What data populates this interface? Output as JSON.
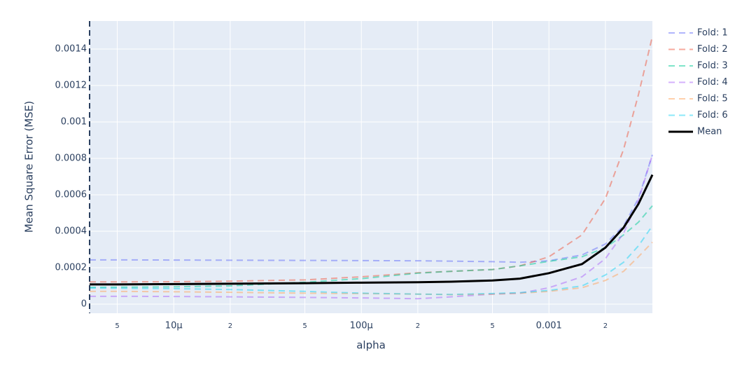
{
  "chart_data": {
    "type": "line",
    "x_label": "alpha",
    "y_label": "Mean Square Error (MSE)",
    "xscale": "log",
    "grid": true,
    "legend": "right",
    "xlim": [
      3.56e-06,
      0.00356
    ],
    "ylim": [
      -5e-05,
      0.001554
    ],
    "xticks": [
      {
        "value": 5e-06,
        "label": "5"
      },
      {
        "value": 1e-05,
        "label": "10μ"
      },
      {
        "value": 2e-05,
        "label": "2"
      },
      {
        "value": 5e-05,
        "label": "5"
      },
      {
        "value": 0.0001,
        "label": "100μ"
      },
      {
        "value": 0.0002,
        "label": "2"
      },
      {
        "value": 0.0005,
        "label": "5"
      },
      {
        "value": 0.001,
        "label": "0.001"
      },
      {
        "value": 0.002,
        "label": "2"
      }
    ],
    "yticks": [
      0,
      0.0002,
      0.0004,
      0.0006,
      0.0008,
      0.001,
      0.0012,
      0.0014
    ],
    "x": [
      3.56e-06,
      5e-06,
      1e-05,
      2e-05,
      5e-05,
      0.0001,
      0.0002,
      0.0003,
      0.0005,
      0.0007,
      0.001,
      0.0015,
      0.002,
      0.0025,
      0.003,
      0.00356
    ],
    "series": [
      {
        "name": "Fold: 1",
        "color": "#636efa",
        "dash": "dash",
        "values": [
          0.000243,
          0.000243,
          0.000242,
          0.000241,
          0.00024,
          0.000239,
          0.000238,
          0.000236,
          0.000233,
          0.00023,
          0.000238,
          0.00027,
          0.00033,
          0.00043,
          0.00058,
          0.00082
        ]
      },
      {
        "name": "Fold: 2",
        "color": "#ef553b",
        "dash": "dash",
        "values": [
          0.000122,
          0.000122,
          0.000123,
          0.000126,
          0.000133,
          0.00015,
          0.000172,
          0.00018,
          0.00019,
          0.00021,
          0.00026,
          0.00038,
          0.00058,
          0.00085,
          0.00115,
          0.00147
        ]
      },
      {
        "name": "Fold: 3",
        "color": "#00cc96",
        "dash": "dash",
        "values": [
          9.2e-05,
          9.3e-05,
          9.5e-05,
          0.0001,
          0.00012,
          0.00014,
          0.00017,
          0.00018,
          0.00019,
          0.00021,
          0.000235,
          0.00026,
          0.00031,
          0.00038,
          0.00045,
          0.00054
        ]
      },
      {
        "name": "Fold: 4",
        "color": "#ab63fa",
        "dash": "dash",
        "values": [
          4.3e-05,
          4.3e-05,
          4.2e-05,
          4e-05,
          3.7e-05,
          3.4e-05,
          3e-05,
          4e-05,
          5.5e-05,
          6e-05,
          9e-05,
          0.00015,
          0.00025,
          0.00039,
          0.00057,
          0.00082
        ]
      },
      {
        "name": "Fold: 5",
        "color": "#ffa15a",
        "dash": "dash",
        "values": [
          7e-05,
          7e-05,
          6.8e-05,
          6.5e-05,
          6e-05,
          5.8e-05,
          5.5e-05,
          5.2e-05,
          5.5e-05,
          6e-05,
          7e-05,
          9e-05,
          0.00013,
          0.00018,
          0.00026,
          0.00034
        ]
      },
      {
        "name": "Fold: 6",
        "color": "#19d3f3",
        "dash": "dash",
        "values": [
          8.8e-05,
          8.7e-05,
          8.5e-05,
          8e-05,
          7e-05,
          6e-05,
          5.5e-05,
          5.3e-05,
          5.8e-05,
          6.3e-05,
          7.5e-05,
          0.0001,
          0.00016,
          0.00023,
          0.00032,
          0.00043
        ]
      },
      {
        "name": "Mean",
        "color": "#000000",
        "dash": "solid",
        "values": [
          0.000108,
          0.000108,
          0.00011,
          0.000112,
          0.000115,
          0.000118,
          0.00012,
          0.000123,
          0.00013,
          0.00014,
          0.00017,
          0.00022,
          0.00031,
          0.00042,
          0.00055,
          0.00071
        ]
      }
    ]
  }
}
